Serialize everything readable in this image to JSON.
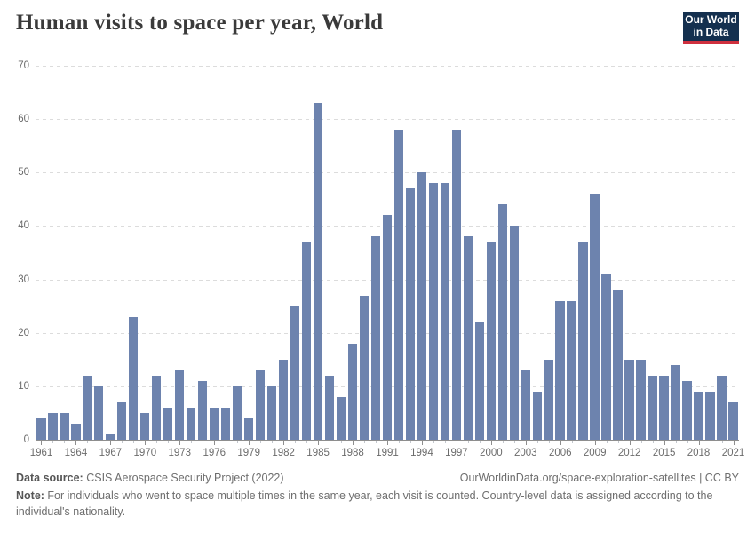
{
  "header": {
    "title": "Human visits to space per year, World"
  },
  "logo": {
    "line1": "Our World",
    "line2": "in Data",
    "background": "#14304f",
    "accent": "#cf303e"
  },
  "footer": {
    "source_label": "Data source:",
    "source_text": " CSIS Aerospace Security Project (2022)",
    "link_text": "OurWorldinData.org/space-exploration-satellites | CC BY",
    "note_label": "Note:",
    "note_text": " For individuals who went to space multiple times in the same year, each visit is counted. Country-level data is assigned according to the individual's nationality."
  },
  "chart_data": {
    "type": "bar",
    "title": "Human visits to space per year, World",
    "xlabel": "",
    "ylabel": "",
    "x": [
      1961,
      1962,
      1963,
      1964,
      1965,
      1966,
      1967,
      1968,
      1969,
      1970,
      1971,
      1972,
      1973,
      1974,
      1975,
      1976,
      1977,
      1978,
      1979,
      1980,
      1981,
      1982,
      1983,
      1984,
      1985,
      1986,
      1987,
      1988,
      1989,
      1990,
      1991,
      1992,
      1993,
      1994,
      1995,
      1996,
      1997,
      1998,
      1999,
      2000,
      2001,
      2002,
      2003,
      2004,
      2005,
      2006,
      2007,
      2008,
      2009,
      2010,
      2011,
      2012,
      2013,
      2014,
      2015,
      2016,
      2017,
      2018,
      2019,
      2020,
      2021
    ],
    "values": [
      4,
      5,
      5,
      3,
      12,
      10,
      1,
      7,
      23,
      5,
      12,
      6,
      13,
      6,
      11,
      6,
      6,
      10,
      4,
      13,
      10,
      15,
      25,
      37,
      63,
      12,
      8,
      18,
      27,
      38,
      42,
      58,
      47,
      50,
      48,
      48,
      58,
      38,
      22,
      37,
      44,
      40,
      13,
      9,
      15,
      26,
      26,
      37,
      46,
      31,
      28,
      15,
      15,
      12,
      12,
      14,
      11,
      9,
      9,
      12,
      7
    ],
    "xtick_labels": [
      1961,
      1964,
      1967,
      1970,
      1973,
      1976,
      1979,
      1982,
      1985,
      1988,
      1991,
      1994,
      1997,
      2000,
      2003,
      2006,
      2009,
      2012,
      2015,
      2018,
      2021
    ],
    "yticks": [
      0,
      10,
      20,
      30,
      40,
      50,
      60,
      70
    ],
    "ylim": [
      0,
      70
    ],
    "grid": "horizontal-dashed",
    "legend_position": "none",
    "bar_color": "#6d83ae",
    "axis_color": "#8e8e8e",
    "gridline_color": "#dcdcdc",
    "tick_label_color": "#6b6b6b"
  }
}
